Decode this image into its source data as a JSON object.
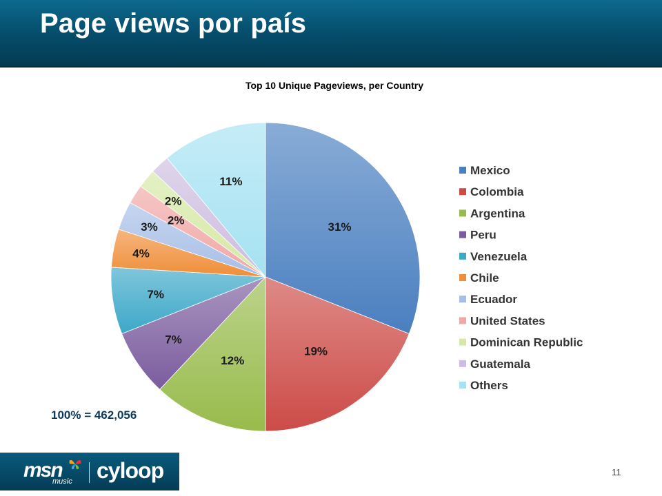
{
  "header": {
    "title": "Page views por país"
  },
  "chart_data": {
    "type": "pie",
    "title": "Top 10 Unique Pageviews, per Country",
    "categories": [
      "Mexico",
      "Colombia",
      "Argentina",
      "Peru",
      "Venezuela",
      "Chile",
      "Ecuador",
      "United States",
      "Dominican Republic",
      "Guatemala",
      "Others"
    ],
    "values": [
      31,
      19,
      12,
      7,
      7,
      4,
      3,
      2,
      2,
      2,
      11
    ],
    "labels": [
      "31%",
      "19%",
      "12%",
      "7%",
      "7%",
      "4%",
      "3%",
      "2%",
      "2%",
      "",
      "11%"
    ],
    "unit": "%",
    "colors": [
      "#4a7fc0",
      "#cc4b47",
      "#98bb4c",
      "#7b5c9e",
      "#3ca8c8",
      "#ef8e38",
      "#a7bfe6",
      "#f0a8a6",
      "#d6e8a6",
      "#cdbde0",
      "#a5e2f2"
    ],
    "legend_position": "right"
  },
  "total_label": "100% = 462,056",
  "footer": {
    "logo_msn": "msn",
    "logo_music": "music",
    "logo_cyloop": "cyloop",
    "page_number": "11"
  }
}
